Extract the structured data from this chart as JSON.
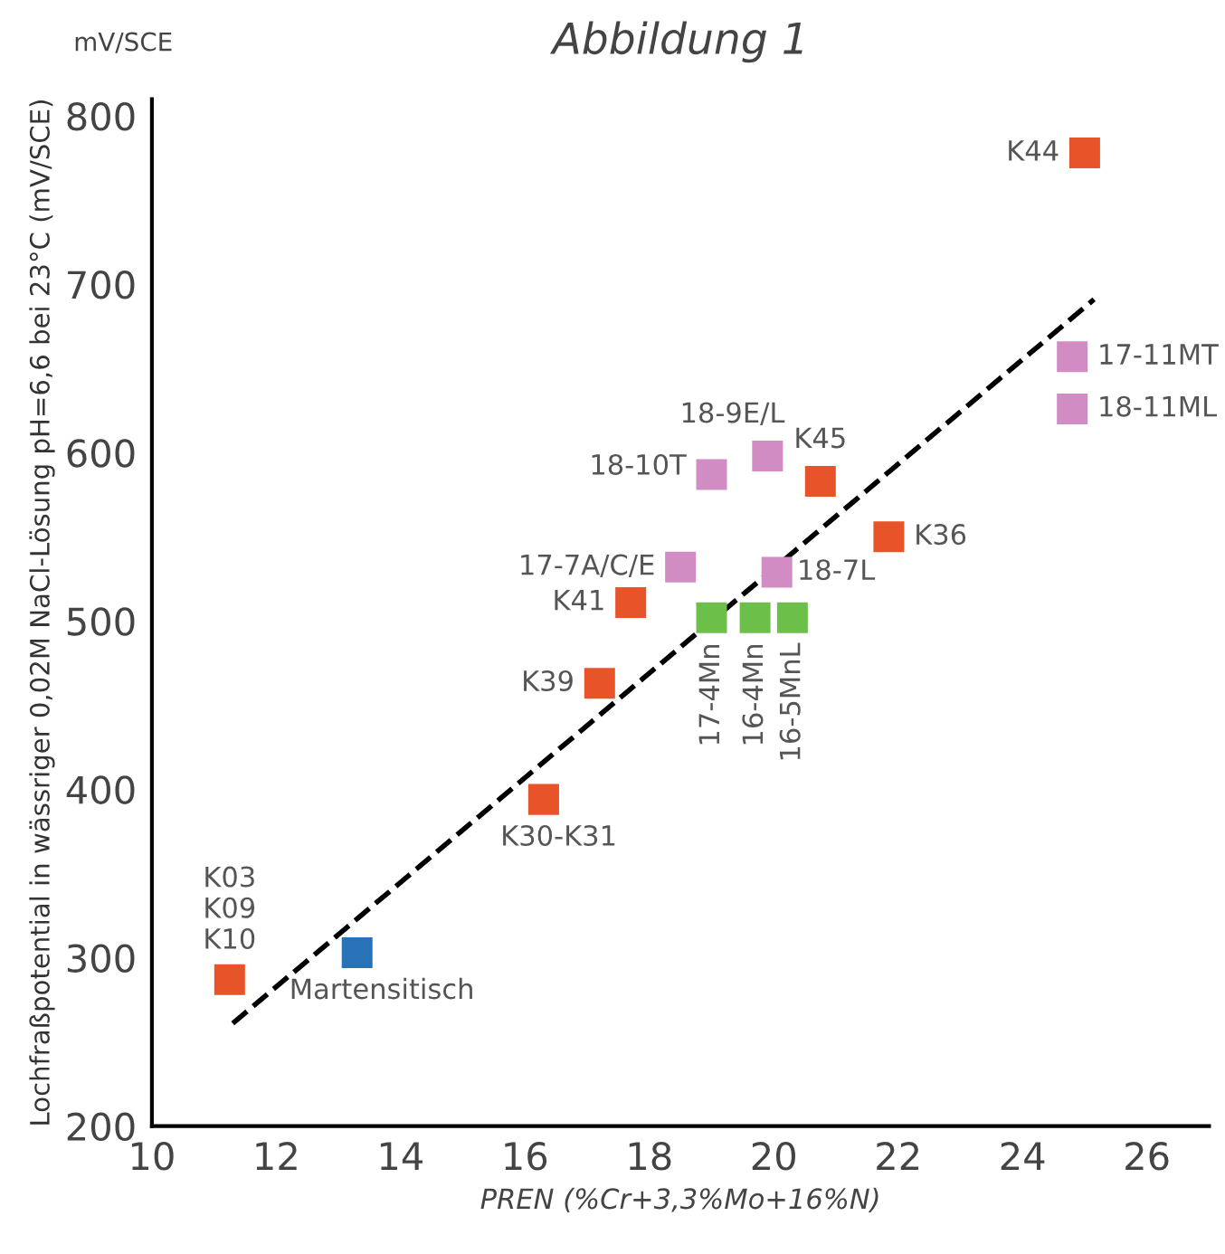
{
  "chart_data": {
    "type": "scatter",
    "title": "Abbildung 1",
    "xlabel": "PREN (%Cr+3,3%Mo+16%N)",
    "ylabel": "Lochfraßpotential in wässriger 0,02M NaCl-Lösung pH=6,6 bei 23°C (mV/SCE)",
    "xlim": [
      10,
      27
    ],
    "ylim": [
      200,
      810
    ],
    "xticks": [
      10,
      12,
      14,
      16,
      18,
      20,
      22,
      24,
      26
    ],
    "yticks": [
      200,
      300,
      400,
      500,
      600,
      700,
      800
    ],
    "grid": false,
    "marker": "square",
    "series": [
      {
        "color": "#e8542a",
        "x": [
          25.0,
          20.75,
          21.85,
          17.7,
          17.2,
          16.3,
          11.25
        ],
        "values": [
          778,
          583,
          550,
          511,
          463,
          394,
          287
        ]
      },
      {
        "color": "#d28cc4",
        "x": [
          24.8,
          24.8,
          19.9,
          19.0,
          18.5,
          20.05
        ],
        "values": [
          657,
          626,
          598,
          587,
          532,
          529
        ]
      },
      {
        "color": "#6cc04a",
        "x": [
          19.0,
          19.7,
          20.3
        ],
        "values": [
          502,
          502,
          502
        ]
      },
      {
        "color": "#2a72b8",
        "x": [
          13.3
        ],
        "values": [
          303
        ]
      },
      {
        "type": "line",
        "color": "#000000",
        "line_style": "dashed",
        "marker": "none",
        "x": [
          11.3,
          25.15
        ],
        "values": [
          261,
          691
        ]
      }
    ],
    "annotations": [
      "mV/SCE",
      {
        "text": "K44",
        "x": 25.0,
        "y": 778
      },
      {
        "text": "17-11MT",
        "x": 24.8,
        "y": 657
      },
      {
        "text": "18-11ML",
        "x": 24.8,
        "y": 626
      },
      {
        "text": "K45",
        "x": 20.75,
        "y": 583
      },
      {
        "text": "K36",
        "x": 21.85,
        "y": 550
      },
      {
        "text": "18-9E/L",
        "x": 19.9,
        "y": 598
      },
      {
        "text": "18-10T",
        "x": 19.0,
        "y": 587
      },
      {
        "text": "17-7A/C/E",
        "x": 18.5,
        "y": 532
      },
      {
        "text": "18-7L",
        "x": 20.05,
        "y": 529
      },
      {
        "text": "K41",
        "x": 17.7,
        "y": 511
      },
      {
        "text": "17-4Mn",
        "x": 19.0,
        "y": 502
      },
      {
        "text": "16-4Mn",
        "x": 19.7,
        "y": 502
      },
      {
        "text": "16-5MnL",
        "x": 20.3,
        "y": 502
      },
      {
        "text": "K39",
        "x": 17.2,
        "y": 463
      },
      {
        "text": "K30-K31",
        "x": 16.3,
        "y": 394
      },
      {
        "text": "Martensitisch",
        "x": 13.3,
        "y": 303
      },
      {
        "text": "K03\nK09\nK10",
        "x": 11.25,
        "y": 287
      }
    ]
  }
}
